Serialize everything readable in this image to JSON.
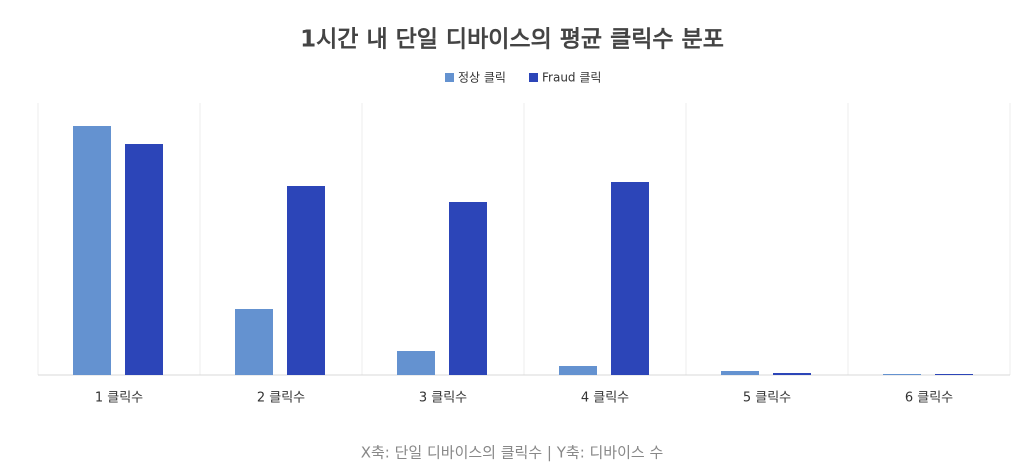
{
  "chart_data": {
    "type": "bar",
    "title": "1시간 내 단일 디바이스의 평균 클릭수 분포",
    "footnote": "X축: 단일 디바이스의 클릭수 | Y축: 디바이스 수",
    "categories": [
      "1 클릭수",
      "2 클릭수",
      "3 클릭수",
      "4 클릭수",
      "5 클릭수",
      "6 클릭수"
    ],
    "series": [
      {
        "name": "정상 클릭",
        "color": "#6492d0",
        "values": [
          249,
          66,
          24,
          9,
          4,
          1
        ]
      },
      {
        "name": "Fraud 클릭",
        "color": "#2c45b8",
        "values": [
          231,
          189,
          173,
          193,
          2,
          1
        ]
      }
    ],
    "ylim": [
      0,
      272
    ],
    "legend": "top"
  }
}
